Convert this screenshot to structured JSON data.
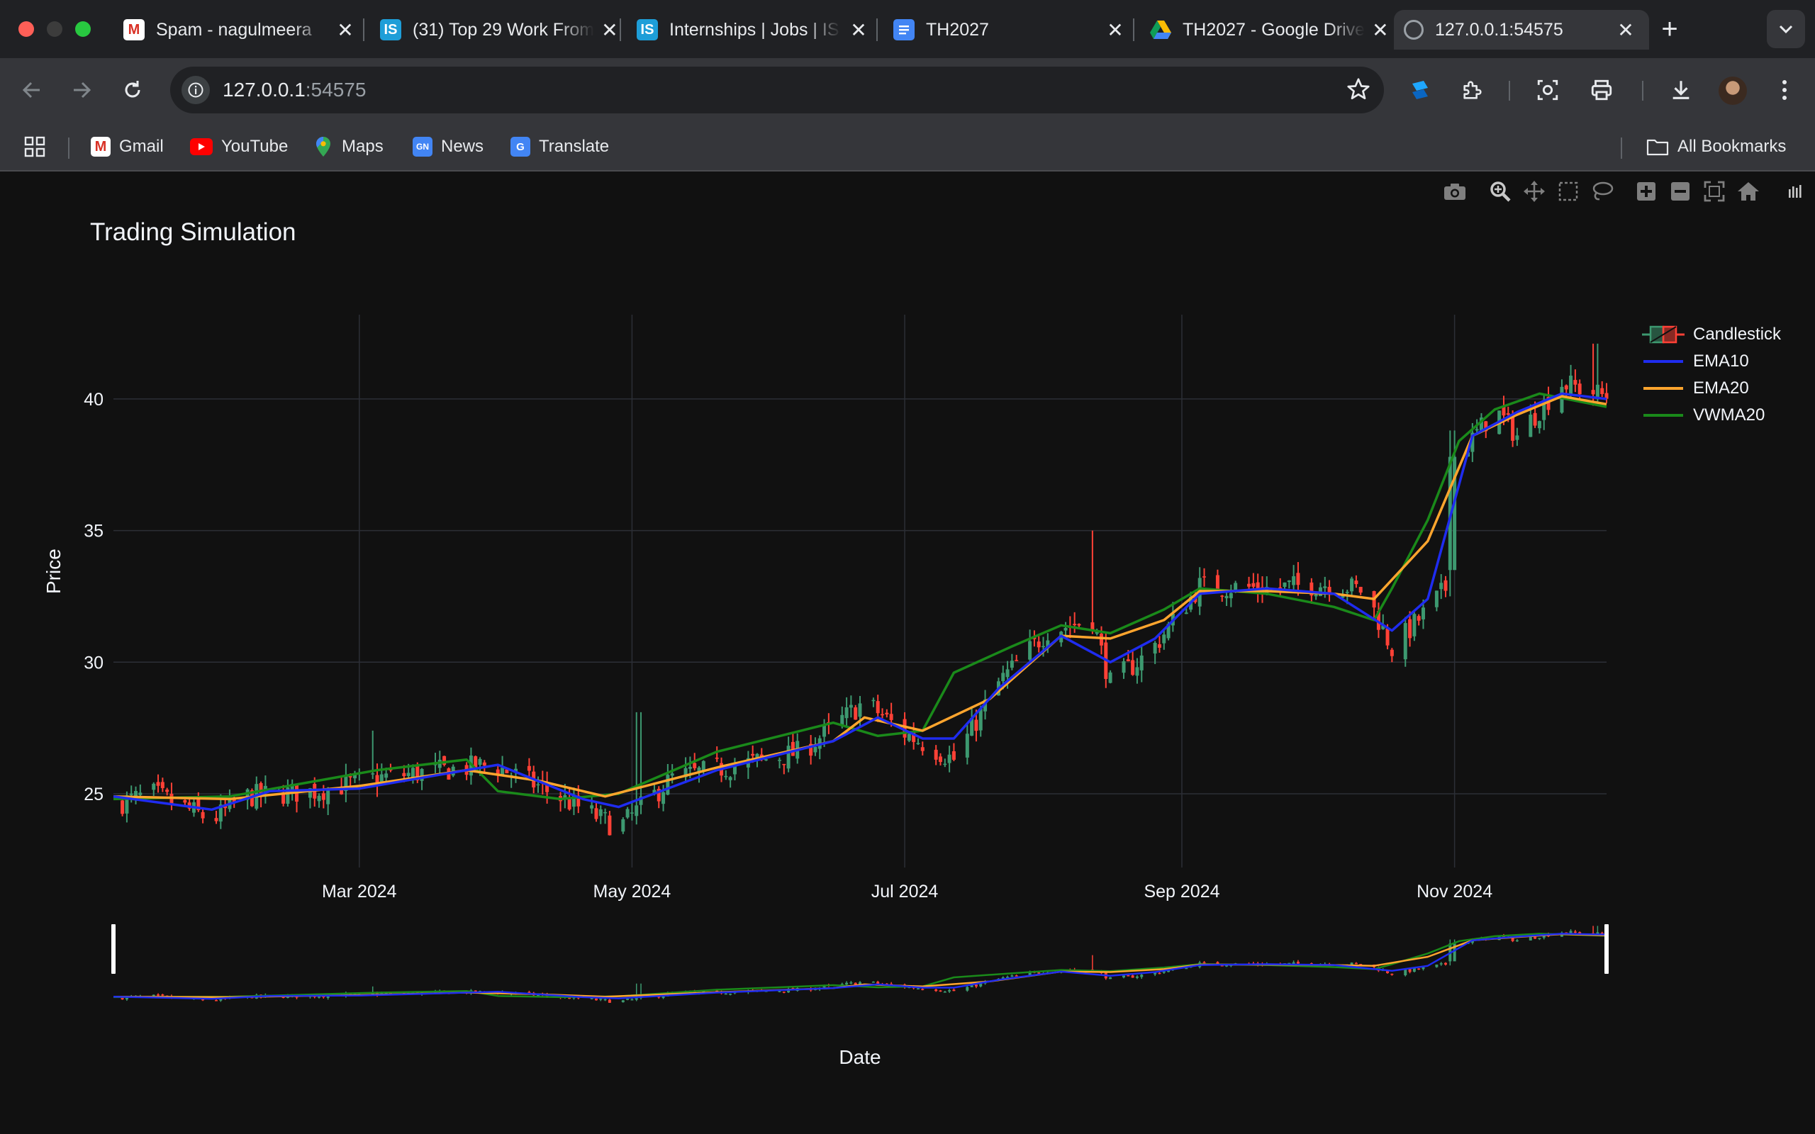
{
  "browser": {
    "tabs": [
      {
        "title": "Spam - nagulmeera",
        "favicon": "gmail-icon",
        "active": false
      },
      {
        "title": "(31) Top 29 Work From",
        "favicon": "is-icon",
        "active": false
      },
      {
        "title": "Internships | Jobs | IS",
        "favicon": "is-icon",
        "active": false
      },
      {
        "title": "TH2027",
        "favicon": "docs-icon",
        "active": false
      },
      {
        "title": "TH2027 - Google Drive",
        "favicon": "drive-icon",
        "active": false
      },
      {
        "title": "127.0.0.1:54575",
        "favicon": "globe-icon",
        "active": true
      }
    ],
    "address": {
      "host": "127.0.0.1",
      "port": ":54575"
    },
    "bookmarks": [
      {
        "label": "Gmail",
        "icon": "gmail-icon"
      },
      {
        "label": "YouTube",
        "icon": "youtube-icon"
      },
      {
        "label": "Maps",
        "icon": "maps-icon"
      },
      {
        "label": "News",
        "icon": "news-icon"
      },
      {
        "label": "Translate",
        "icon": "translate-icon"
      }
    ],
    "all_bookmarks_label": "All Bookmarks"
  },
  "modebar": [
    "camera-icon",
    "zoom-icon",
    "pan-icon",
    "box-select-icon",
    "lasso-icon",
    "zoom-in-icon",
    "zoom-out-icon",
    "autoscale-icon",
    "reset-axes-icon",
    "plotly-logo-icon"
  ],
  "chart_data": {
    "type": "candlestick",
    "title": "Trading Simulation",
    "xlabel": "Date",
    "ylabel": "Price",
    "x_range": [
      "2024-01-06",
      "2024-12-05"
    ],
    "ylim": [
      22.2,
      43.2
    ],
    "x_ticks": [
      {
        "date": "2024-03-01",
        "label": "Mar 2024"
      },
      {
        "date": "2024-05-01",
        "label": "May 2024"
      },
      {
        "date": "2024-07-01",
        "label": "Jul 2024"
      },
      {
        "date": "2024-09-01",
        "label": "Sep 2024"
      },
      {
        "date": "2024-11-01",
        "label": "Nov 2024"
      }
    ],
    "y_ticks": [
      25,
      30,
      35,
      40
    ],
    "grid": true,
    "legend_position": "top-right",
    "rangeslider": true,
    "colors": {
      "increasing": "#3d9970",
      "decreasing": "#ff4136",
      "ema10": "#1f2cf0",
      "ema20": "#ffa52e",
      "vwma20": "#1a8a1a",
      "grid": "#2c2f36"
    },
    "series": [
      {
        "name": "Candlestick",
        "kind": "candlestick"
      },
      {
        "name": "EMA10",
        "kind": "line"
      },
      {
        "name": "EMA20",
        "kind": "line"
      },
      {
        "name": "VWMA20",
        "kind": "line"
      }
    ],
    "close_anchors": [
      {
        "date": "2024-01-06",
        "close": 24.6
      },
      {
        "date": "2024-01-15",
        "close": 25.0
      },
      {
        "date": "2024-01-28",
        "close": 24.0
      },
      {
        "date": "2024-02-05",
        "close": 24.9
      },
      {
        "date": "2024-02-20",
        "close": 25.1
      },
      {
        "date": "2024-03-05",
        "close": 25.6
      },
      {
        "date": "2024-03-20",
        "close": 25.9
      },
      {
        "date": "2024-03-31",
        "close": 26.1
      },
      {
        "date": "2024-04-10",
        "close": 25.3
      },
      {
        "date": "2024-04-20",
        "close": 24.4
      },
      {
        "date": "2024-04-28",
        "close": 23.7
      },
      {
        "date": "2024-05-10",
        "close": 25.6
      },
      {
        "date": "2024-05-25",
        "close": 26.1
      },
      {
        "date": "2024-06-08",
        "close": 26.6
      },
      {
        "date": "2024-06-22",
        "close": 28.5
      },
      {
        "date": "2024-07-01",
        "close": 27.3
      },
      {
        "date": "2024-07-12",
        "close": 26.3
      },
      {
        "date": "2024-07-22",
        "close": 29.2
      },
      {
        "date": "2024-08-02",
        "close": 31.2
      },
      {
        "date": "2024-08-12",
        "close": 31.6
      },
      {
        "date": "2024-08-16",
        "close": 29.2
      },
      {
        "date": "2024-08-25",
        "close": 30.4
      },
      {
        "date": "2024-09-05",
        "close": 32.9
      },
      {
        "date": "2024-09-20",
        "close": 32.8
      },
      {
        "date": "2024-10-05",
        "close": 33.0
      },
      {
        "date": "2024-10-12",
        "close": 32.7
      },
      {
        "date": "2024-10-18",
        "close": 30.5
      },
      {
        "date": "2024-10-26",
        "close": 32.0
      },
      {
        "date": "2024-10-30",
        "close": 32.8
      },
      {
        "date": "2024-11-02",
        "close": 37.8
      },
      {
        "date": "2024-11-10",
        "close": 39.6
      },
      {
        "date": "2024-11-15",
        "close": 38.6
      },
      {
        "date": "2024-11-25",
        "close": 40.6
      },
      {
        "date": "2024-12-05",
        "close": 40.1
      }
    ],
    "ema10_points": [
      {
        "date": "2024-01-06",
        "value": 24.9
      },
      {
        "date": "2024-01-28",
        "value": 24.4
      },
      {
        "date": "2024-02-10",
        "value": 25.1
      },
      {
        "date": "2024-03-01",
        "value": 25.2
      },
      {
        "date": "2024-03-25",
        "value": 25.9
      },
      {
        "date": "2024-04-01",
        "value": 26.1
      },
      {
        "date": "2024-04-20",
        "value": 24.8
      },
      {
        "date": "2024-04-28",
        "value": 24.5
      },
      {
        "date": "2024-05-20",
        "value": 25.9
      },
      {
        "date": "2024-06-15",
        "value": 27.0
      },
      {
        "date": "2024-06-25",
        "value": 27.9
      },
      {
        "date": "2024-07-05",
        "value": 27.1
      },
      {
        "date": "2024-07-12",
        "value": 27.1
      },
      {
        "date": "2024-07-22",
        "value": 29.0
      },
      {
        "date": "2024-08-05",
        "value": 31.0
      },
      {
        "date": "2024-08-16",
        "value": 30.0
      },
      {
        "date": "2024-08-26",
        "value": 30.9
      },
      {
        "date": "2024-09-05",
        "value": 32.6
      },
      {
        "date": "2024-09-20",
        "value": 32.8
      },
      {
        "date": "2024-10-05",
        "value": 32.6
      },
      {
        "date": "2024-10-18",
        "value": 31.2
      },
      {
        "date": "2024-10-26",
        "value": 32.4
      },
      {
        "date": "2024-11-05",
        "value": 38.6
      },
      {
        "date": "2024-11-15",
        "value": 39.5
      },
      {
        "date": "2024-11-25",
        "value": 40.2
      },
      {
        "date": "2024-12-05",
        "value": 40.0
      }
    ],
    "ema20_points": [
      {
        "date": "2024-01-06",
        "value": 24.9
      },
      {
        "date": "2024-02-01",
        "value": 24.8
      },
      {
        "date": "2024-03-01",
        "value": 25.3
      },
      {
        "date": "2024-03-25",
        "value": 25.9
      },
      {
        "date": "2024-04-10",
        "value": 25.5
      },
      {
        "date": "2024-04-25",
        "value": 24.9
      },
      {
        "date": "2024-05-20",
        "value": 26.0
      },
      {
        "date": "2024-06-15",
        "value": 27.0
      },
      {
        "date": "2024-06-22",
        "value": 27.9
      },
      {
        "date": "2024-07-05",
        "value": 27.4
      },
      {
        "date": "2024-07-20",
        "value": 28.6
      },
      {
        "date": "2024-08-05",
        "value": 31.0
      },
      {
        "date": "2024-08-16",
        "value": 30.9
      },
      {
        "date": "2024-08-28",
        "value": 31.6
      },
      {
        "date": "2024-09-05",
        "value": 32.7
      },
      {
        "date": "2024-09-20",
        "value": 32.7
      },
      {
        "date": "2024-10-05",
        "value": 32.6
      },
      {
        "date": "2024-10-14",
        "value": 32.4
      },
      {
        "date": "2024-10-26",
        "value": 34.6
      },
      {
        "date": "2024-11-05",
        "value": 38.6
      },
      {
        "date": "2024-11-15",
        "value": 39.4
      },
      {
        "date": "2024-11-25",
        "value": 40.1
      },
      {
        "date": "2024-12-05",
        "value": 39.8
      }
    ],
    "vwma20_points": [
      {
        "date": "2024-01-06",
        "value": 24.8
      },
      {
        "date": "2024-02-01",
        "value": 24.9
      },
      {
        "date": "2024-03-05",
        "value": 25.9
      },
      {
        "date": "2024-03-25",
        "value": 26.3
      },
      {
        "date": "2024-04-01",
        "value": 25.1
      },
      {
        "date": "2024-04-15",
        "value": 24.8
      },
      {
        "date": "2024-04-28",
        "value": 25.0
      },
      {
        "date": "2024-05-20",
        "value": 26.6
      },
      {
        "date": "2024-06-15",
        "value": 27.7
      },
      {
        "date": "2024-06-25",
        "value": 27.2
      },
      {
        "date": "2024-07-05",
        "value": 27.4
      },
      {
        "date": "2024-07-12",
        "value": 29.6
      },
      {
        "date": "2024-07-25",
        "value": 30.6
      },
      {
        "date": "2024-08-05",
        "value": 31.4
      },
      {
        "date": "2024-08-16",
        "value": 31.1
      },
      {
        "date": "2024-08-28",
        "value": 32.0
      },
      {
        "date": "2024-09-05",
        "value": 32.8
      },
      {
        "date": "2024-09-20",
        "value": 32.6
      },
      {
        "date": "2024-10-05",
        "value": 32.1
      },
      {
        "date": "2024-10-14",
        "value": 31.6
      },
      {
        "date": "2024-10-18",
        "value": 32.8
      },
      {
        "date": "2024-10-26",
        "value": 35.4
      },
      {
        "date": "2024-11-02",
        "value": 38.4
      },
      {
        "date": "2024-11-10",
        "value": 39.6
      },
      {
        "date": "2024-11-20",
        "value": 40.2
      },
      {
        "date": "2024-12-05",
        "value": 39.7
      }
    ],
    "spikes": [
      {
        "date": "2024-03-03",
        "high": 27.4
      },
      {
        "date": "2024-05-03",
        "high": 28.1
      },
      {
        "date": "2024-08-11",
        "high": 35.0
      },
      {
        "date": "2024-11-01",
        "high": 38.8
      },
      {
        "date": "2024-12-02",
        "high": 42.1
      }
    ]
  }
}
